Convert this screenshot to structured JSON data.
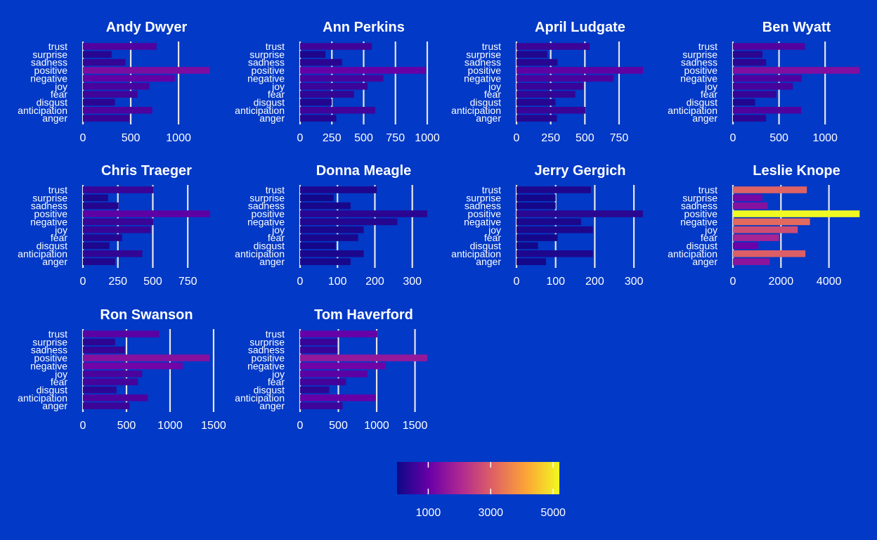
{
  "chart_data": {
    "type": "bar",
    "orientation": "horizontal",
    "facet_by": "character",
    "categories": [
      "trust",
      "surprise",
      "sadness",
      "positive",
      "negative",
      "joy",
      "fear",
      "disgust",
      "anticipation",
      "anger"
    ],
    "colors": {
      "background": "#0239c6",
      "scale": [
        "#0d0887",
        "#6a00a8",
        "#b12a90",
        "#e16462",
        "#fca636",
        "#f0f921"
      ]
    },
    "grid": true,
    "legend": {
      "position": "bottom",
      "type": "colorbar",
      "range": [
        0,
        5200
      ],
      "ticks": [
        1000,
        3000,
        5000
      ],
      "tick_labels": [
        "1000",
        "3000",
        "5000"
      ]
    },
    "panels": [
      {
        "name": "Andy Dwyer",
        "xticks": [
          0,
          500,
          1000
        ],
        "xmax": 1330,
        "values": [
          770,
          300,
          445,
          1325,
          960,
          695,
          570,
          335,
          725,
          485
        ]
      },
      {
        "name": "Ann Perkins",
        "xticks": [
          0,
          250,
          500,
          750,
          1000
        ],
        "xmax": 1000,
        "values": [
          565,
          200,
          330,
          990,
          655,
          530,
          425,
          250,
          590,
          285
        ]
      },
      {
        "name": "April Ludgate",
        "xticks": [
          0,
          250,
          500,
          750
        ],
        "xmax": 930,
        "values": [
          535,
          225,
          300,
          925,
          710,
          490,
          430,
          285,
          505,
          295
        ]
      },
      {
        "name": "Ben Wyatt",
        "xticks": [
          0,
          500,
          1000
        ],
        "xmax": 1380,
        "values": [
          780,
          320,
          360,
          1375,
          745,
          650,
          470,
          240,
          740,
          360
        ]
      },
      {
        "name": "Chris Traeger",
        "xticks": [
          0,
          250,
          500,
          750
        ],
        "xmax": 910,
        "values": [
          505,
          180,
          255,
          910,
          505,
          485,
          280,
          190,
          425,
          230
        ]
      },
      {
        "name": "Donna Meagle",
        "xticks": [
          0,
          100,
          200,
          300
        ],
        "xmax": 340,
        "values": [
          205,
          90,
          135,
          340,
          260,
          170,
          155,
          95,
          170,
          135
        ]
      },
      {
        "name": "Jerry Gergich",
        "xticks": [
          0,
          100,
          200,
          300
        ],
        "xmax": 325,
        "values": [
          190,
          100,
          100,
          323,
          165,
          195,
          105,
          55,
          195,
          75
        ]
      },
      {
        "name": "Leslie Knope",
        "xticks": [
          0,
          2000,
          4000
        ],
        "xmax": 5300,
        "values": [
          3080,
          1230,
          1450,
          5280,
          3210,
          2700,
          1920,
          1060,
          3020,
          1540
        ]
      },
      {
        "name": "Ron Swanson",
        "xticks": [
          0,
          500,
          1000,
          1500
        ],
        "xmax": 1460,
        "values": [
          875,
          370,
          480,
          1455,
          1145,
          680,
          630,
          385,
          745,
          535
        ]
      },
      {
        "name": "Tom Haverford",
        "xticks": [
          0,
          500,
          1000,
          1500
        ],
        "xmax": 1660,
        "values": [
          1010,
          490,
          490,
          1660,
          1110,
          880,
          600,
          380,
          990,
          555
        ]
      }
    ]
  }
}
